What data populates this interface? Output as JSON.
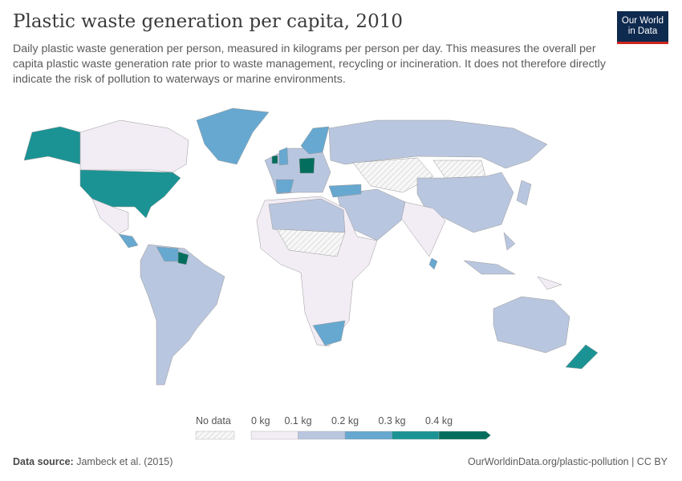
{
  "header": {
    "title": "Plastic waste generation per capita, 2010",
    "subtitle": "Daily plastic waste generation per person, measured in kilograms per person per day. This measures the overall per capita plastic waste generation rate prior to waste management, recycling or incineration. It does not therefore directly indicate the risk of pollution to waterways or marine environments."
  },
  "logo": {
    "line1": "Our World",
    "line2": "in Data"
  },
  "legend": {
    "no_data_label": "No data",
    "ticks": [
      "0 kg",
      "0.1 kg",
      "0.2 kg",
      "0.3 kg",
      "0.4 kg"
    ],
    "colors": [
      "#f2ecf5",
      "#b9c6df",
      "#67a8d0",
      "#1b9394",
      "#036e5e"
    ],
    "no_data_color": "#e8e8e8"
  },
  "map_fills": {
    "canada": 0,
    "alaska": 3,
    "usa": 3,
    "mexico": 0,
    "central-america": 2,
    "greenland": 2,
    "south-america": 1,
    "venezuela": 2,
    "suriname": 4,
    "europe": 1,
    "germany": 4,
    "spain": 2,
    "uk": 2,
    "ireland": 4,
    "scandinavia": 2,
    "russia": 1,
    "central-asia": -1,
    "mongolia": -1,
    "china": 1,
    "india": 0,
    "middle-east": 1,
    "turkey": 2,
    "africa": 0,
    "north-africa": 1,
    "sahel": -1,
    "south-africa": 2,
    "indonesia": 1,
    "philippines": 1,
    "japan": 1,
    "australia": 1,
    "new-zealand": 3,
    "sri-lanka": 2,
    "papua-new-guinea": 0
  },
  "footer": {
    "source_label": "Data source:",
    "source": "Jambeck et al. (2015)",
    "url": "OurWorldinData.org/plastic-pollution | CC BY"
  }
}
